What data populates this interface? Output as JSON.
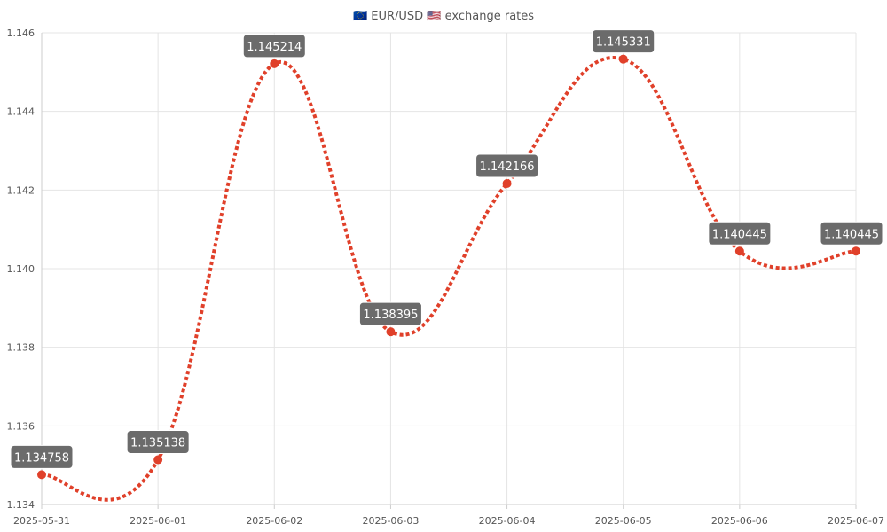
{
  "chart_data": {
    "type": "line",
    "title": "🇪🇺 EUR/USD 🇺🇸 exchange rates",
    "xlabel": "",
    "ylabel": "",
    "x": [
      "2025-05-31",
      "2025-06-01",
      "2025-06-02",
      "2025-06-03",
      "2025-06-04",
      "2025-06-05",
      "2025-06-06",
      "2025-06-07"
    ],
    "series": [
      {
        "name": "",
        "values": [
          1.134758,
          1.135138,
          1.145214,
          1.138395,
          1.142166,
          1.145331,
          1.140445,
          1.140445
        ],
        "data_labels": [
          "1.134758",
          "1.135138",
          "1.145214",
          "1.138395",
          "1.142166",
          "1.145331",
          "1.140445",
          "1.140445"
        ],
        "color": "#e0402a"
      }
    ],
    "ylim": [
      1.134,
      1.146
    ],
    "y_ticks": [
      "1.134",
      "1.136",
      "1.138",
      "1.140",
      "1.142",
      "1.144",
      "1.146"
    ],
    "grid": true,
    "legend": "none"
  }
}
